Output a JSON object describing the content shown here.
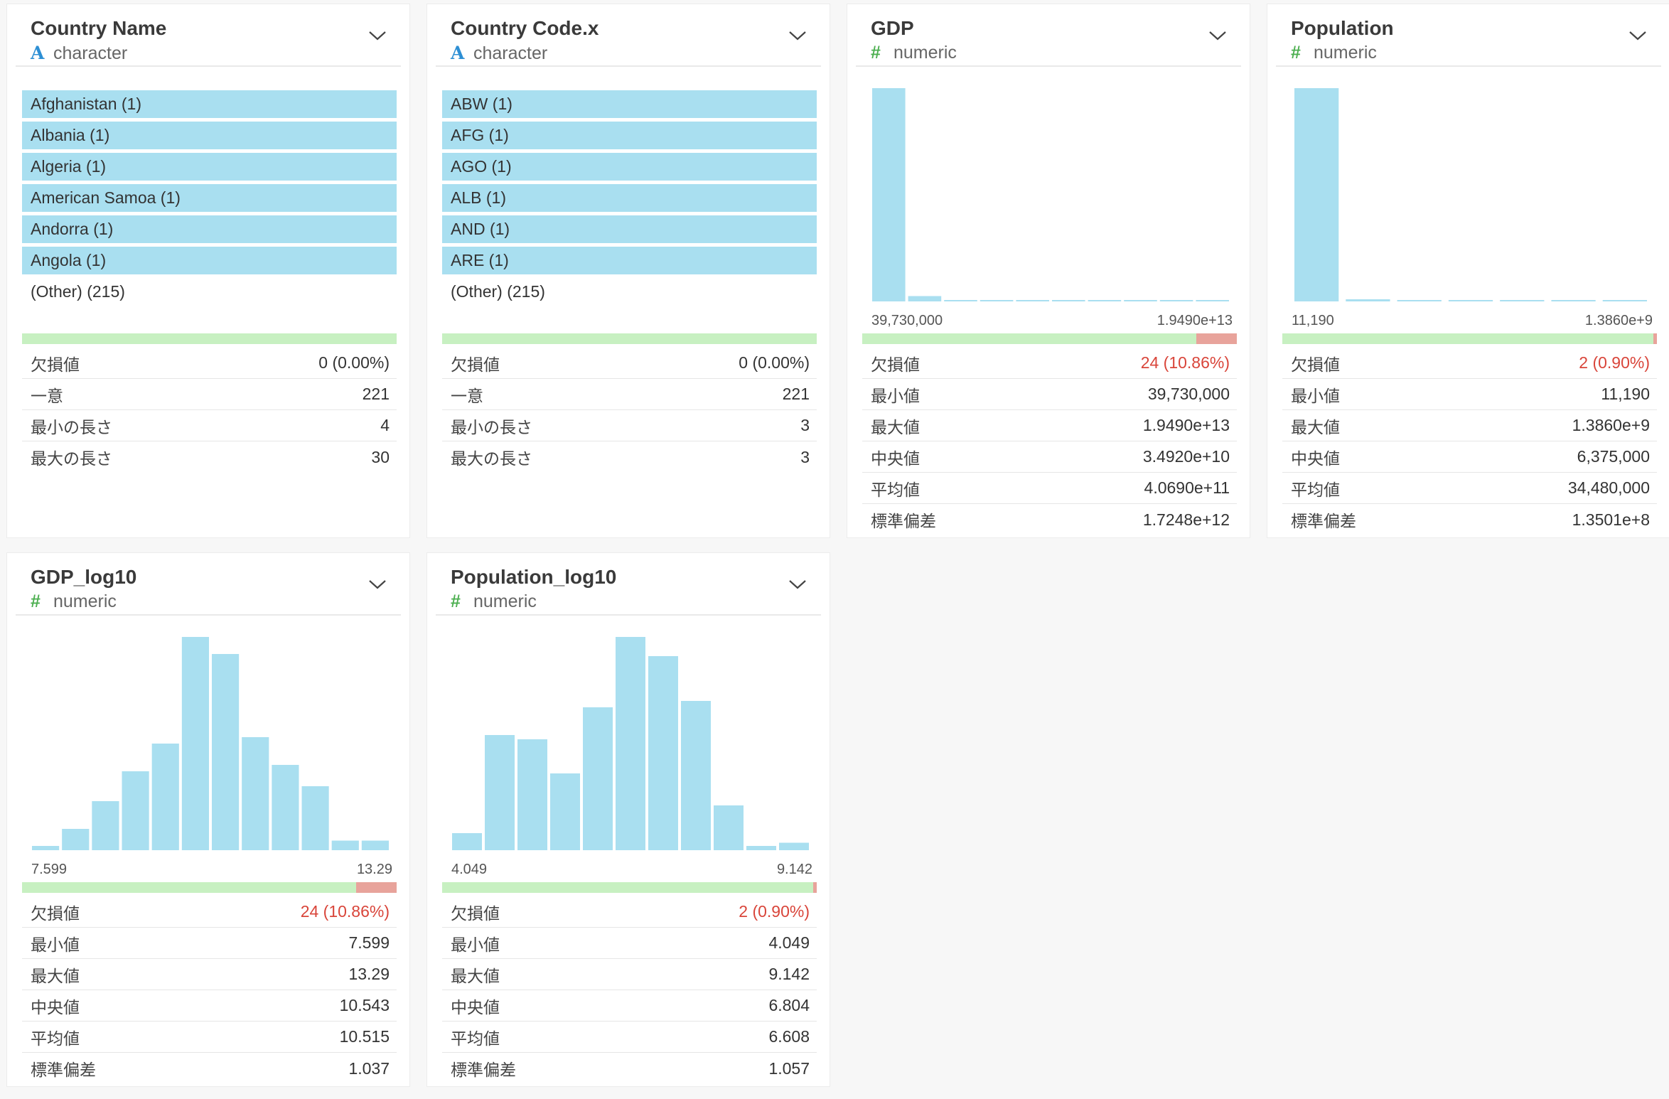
{
  "colors": {
    "bar": "#a9dff0",
    "missing_ok": "#c7f0c1",
    "missing_bad": "#e8a39b",
    "alert": "#d9453a"
  },
  "cards": [
    {
      "name": "Country Name",
      "type_icon": "A",
      "type": "character",
      "categories": [
        "Afghanistan (1)",
        "Albania (1)",
        "Algeria (1)",
        "American Samoa (1)",
        "Andorra (1)",
        "Angola (1)"
      ],
      "other": "(Other) (215)",
      "missing_fraction": 0,
      "stats": [
        {
          "key": "欠損値",
          "value": "0 (0.00%)"
        },
        {
          "key": "一意",
          "value": "221"
        },
        {
          "key": "最小の長さ",
          "value": "4"
        },
        {
          "key": "最大の長さ",
          "value": "30"
        }
      ]
    },
    {
      "name": "Country Code.x",
      "type_icon": "A",
      "type": "character",
      "categories": [
        "ABW (1)",
        "AFG (1)",
        "AGO (1)",
        "ALB (1)",
        "AND (1)",
        "ARE (1)"
      ],
      "other": "(Other) (215)",
      "missing_fraction": 0,
      "stats": [
        {
          "key": "欠損値",
          "value": "0 (0.00%)"
        },
        {
          "key": "一意",
          "value": "221"
        },
        {
          "key": "最小の長さ",
          "value": "3"
        },
        {
          "key": "最大の長さ",
          "value": "3"
        }
      ]
    },
    {
      "name": "GDP",
      "type_icon": "#",
      "type": "numeric",
      "axis_min": "39,730,000",
      "axis_max": "1.9490e+13",
      "missing_fraction": 0.1086,
      "stats": [
        {
          "key": "欠損値",
          "value": "24 (10.86%)",
          "alert": true
        },
        {
          "key": "最小値",
          "value": "39,730,000"
        },
        {
          "key": "最大値",
          "value": "1.9490e+13"
        },
        {
          "key": "中央値",
          "value": "3.4920e+10"
        },
        {
          "key": "平均値",
          "value": "4.0690e+11"
        },
        {
          "key": "標準偏差",
          "value": "1.7248e+12"
        }
      ]
    },
    {
      "name": "Population",
      "type_icon": "#",
      "type": "numeric",
      "axis_min": "11,190",
      "axis_max": "1.3860e+9",
      "missing_fraction": 0.009,
      "stats": [
        {
          "key": "欠損値",
          "value": "2 (0.90%)",
          "alert": true
        },
        {
          "key": "最小値",
          "value": "11,190"
        },
        {
          "key": "最大値",
          "value": "1.3860e+9"
        },
        {
          "key": "中央値",
          "value": "6,375,000"
        },
        {
          "key": "平均値",
          "value": "34,480,000"
        },
        {
          "key": "標準偏差",
          "value": "1.3501e+8"
        }
      ]
    },
    {
      "name": "GDP_log10",
      "type_icon": "#",
      "type": "numeric",
      "axis_min": "7.599",
      "axis_max": "13.29",
      "missing_fraction": 0.1086,
      "stats": [
        {
          "key": "欠損値",
          "value": "24 (10.86%)",
          "alert": true
        },
        {
          "key": "最小値",
          "value": "7.599"
        },
        {
          "key": "最大値",
          "value": "13.29"
        },
        {
          "key": "中央値",
          "value": "10.543"
        },
        {
          "key": "平均値",
          "value": "10.515"
        },
        {
          "key": "標準偏差",
          "value": "1.037"
        }
      ]
    },
    {
      "name": "Population_log10",
      "type_icon": "#",
      "type": "numeric",
      "axis_min": "4.049",
      "axis_max": "9.142",
      "missing_fraction": 0.009,
      "stats": [
        {
          "key": "欠損値",
          "value": "2 (0.90%)",
          "alert": true
        },
        {
          "key": "最小値",
          "value": "4.049"
        },
        {
          "key": "最大値",
          "value": "9.142"
        },
        {
          "key": "中央値",
          "value": "6.804"
        },
        {
          "key": "平均値",
          "value": "6.608"
        },
        {
          "key": "標準偏差",
          "value": "1.057"
        }
      ]
    }
  ],
  "chart_data": [
    {
      "type": "bar",
      "title": "GDP",
      "xlim": [
        "39,730,000",
        "1.9490e+13"
      ],
      "values": [
        100,
        2.5,
        0.5,
        0.5,
        0.5,
        0.5,
        0.5,
        0.5,
        0.5,
        0.5
      ]
    },
    {
      "type": "bar",
      "title": "Population",
      "xlim": [
        "11,190",
        "1.3860e+9"
      ],
      "values": [
        100,
        1,
        0.5,
        0.5,
        0.5,
        0.5,
        0.5
      ]
    },
    {
      "type": "bar",
      "title": "GDP_log10",
      "xlim": [
        "7.599",
        "13.29"
      ],
      "values": [
        2,
        10,
        23,
        37,
        50,
        100,
        92,
        53,
        40,
        30,
        4.5,
        4.5
      ]
    },
    {
      "type": "bar",
      "title": "Population_log10",
      "xlim": [
        "4.049",
        "9.142"
      ],
      "values": [
        8,
        54,
        52,
        36,
        67,
        100,
        91,
        70,
        21,
        2,
        3.5
      ]
    }
  ]
}
